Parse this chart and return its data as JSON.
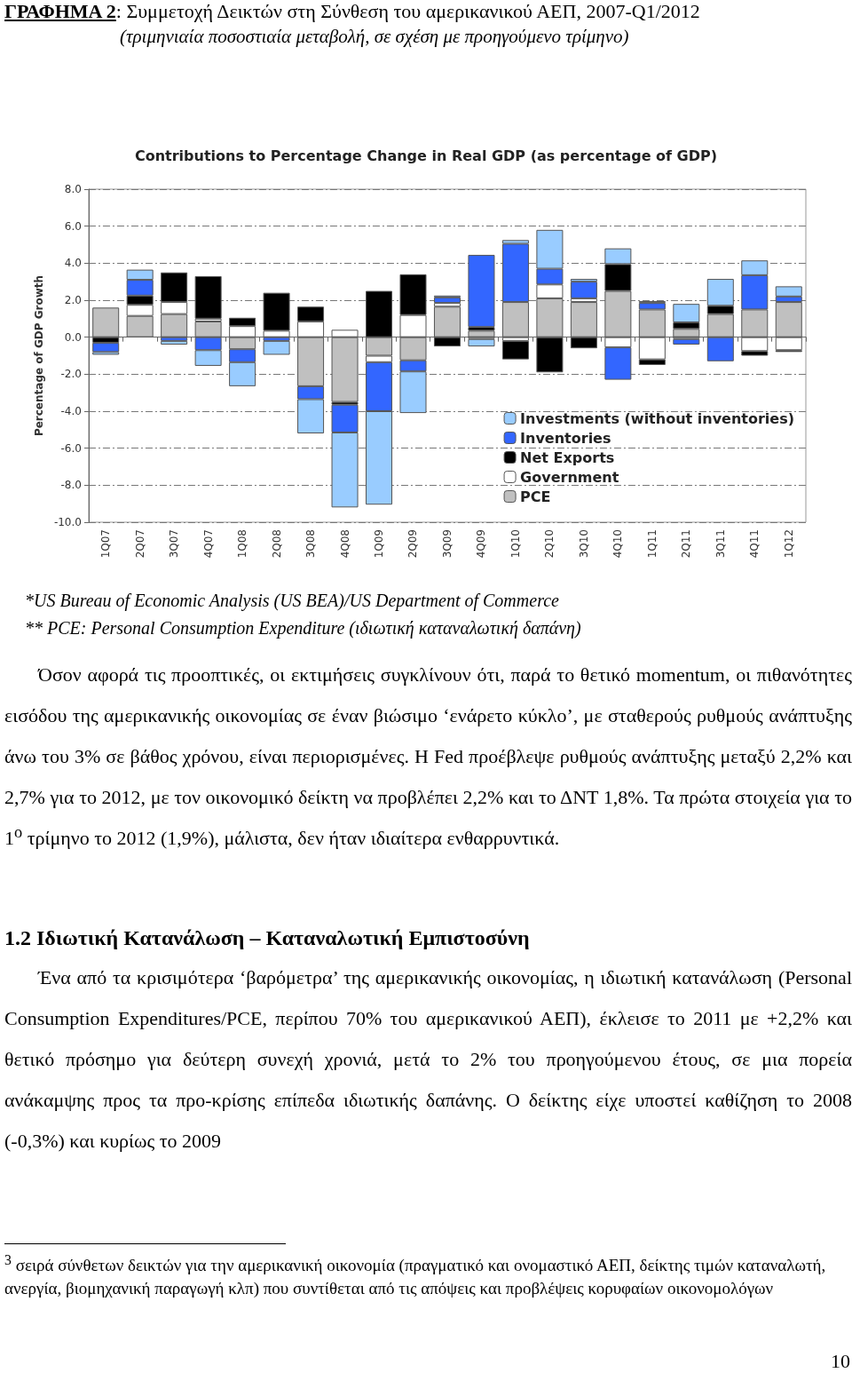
{
  "chart_data": {
    "type": "bar",
    "stacked": true,
    "title": "ΓΡΑΦΗΜΑ 2: Συμμετοχή Δεικτών στη Σύνθεση του αμερικανικού ΑΕΠ, 2007-Q1/2012",
    "subtitle": "(τριμηνιαία ποσοστιαία μεταβολή, σε σχέση με προηγούμενο τρίμηνο)",
    "ylabel": "Percentage of GDP Growth",
    "categories": [
      "1Q07",
      "2Q07",
      "3Q07",
      "4Q07",
      "1Q08",
      "2Q08",
      "3Q08",
      "4Q08",
      "1Q09",
      "2Q09",
      "3Q09",
      "4Q09",
      "1Q10",
      "2Q10",
      "3Q10",
      "4Q10",
      "1Q11",
      "2Q11",
      "3Q11",
      "4Q11",
      "1Q12"
    ],
    "series": [
      {
        "name": "PCE",
        "color": "#c0c0c0",
        "values": [
          1.6,
          1.15,
          1.25,
          0.85,
          -0.65,
          null,
          -2.65,
          -3.5,
          -1.0,
          -1.25,
          1.65,
          0.35,
          1.9,
          2.1,
          1.9,
          2.5,
          1.5,
          0.45,
          1.25,
          1.5,
          1.9
        ]
      },
      {
        "name": "Government",
        "color": "#ffffff",
        "values": [
          null,
          0.6,
          0.65,
          0.15,
          0.6,
          0.35,
          0.85,
          0.4,
          -0.35,
          1.2,
          0.2,
          -0.1,
          -0.2,
          0.75,
          0.2,
          -0.55,
          -1.2,
          -0.1,
          null,
          -0.75,
          -0.7
        ]
      },
      {
        "name": "Net Exports",
        "color": "#000000",
        "values": [
          -0.3,
          0.5,
          1.6,
          2.3,
          0.45,
          2.05,
          0.8,
          -0.15,
          2.5,
          2.2,
          -0.5,
          0.2,
          -1.0,
          -1.9,
          -0.6,
          1.45,
          -0.3,
          0.35,
          0.45,
          -0.25,
          -0.1
        ]
      },
      {
        "name": "Inventories",
        "color": "#3366ff",
        "values": [
          -0.5,
          0.85,
          -0.2,
          -0.7,
          -0.7,
          -0.2,
          -0.7,
          -1.5,
          -2.65,
          -0.6,
          0.3,
          3.9,
          3.15,
          0.85,
          0.9,
          -1.75,
          0.35,
          -0.3,
          -1.3,
          1.85,
          0.3
        ]
      },
      {
        "name": "Investments (without inventories)",
        "color": "#99ccff",
        "values": [
          -0.15,
          0.55,
          -0.2,
          -0.85,
          -1.3,
          -0.75,
          -1.85,
          -4.05,
          -5.05,
          -2.25,
          0.1,
          -0.4,
          0.2,
          2.1,
          0.15,
          0.85,
          0.1,
          1.0,
          1.45,
          0.8,
          0.55
        ]
      }
    ],
    "ylim": [
      -10,
      8
    ],
    "yticks": [
      {
        "value": -10,
        "label": "-10.0"
      },
      {
        "value": -8,
        "label": "-8.0"
      },
      {
        "value": -6,
        "label": "-6.0"
      },
      {
        "value": -4,
        "label": "-4.0"
      },
      {
        "value": -2,
        "label": "-2.0"
      },
      {
        "value": 0,
        "label": "0.0"
      },
      {
        "value": 2,
        "label": "2.0"
      },
      {
        "value": 4,
        "label": "4.0"
      },
      {
        "value": 6,
        "label": "6.0"
      },
      {
        "value": 8,
        "label": "8.0"
      }
    ],
    "grid": "y",
    "legend": "bottom right",
    "annotations": [
      "Contributions to Percentage Change in Real GDP (as percentage of GDP)",
      "*US Bureau of Economic Analysis (US BEA)/US Department of Commerce",
      "** PCE: Personal Consumption Expenditure (ιδιωτική καταναλωτική δαπάνη)",
      "Όσον αφορά τις προοπτικές, οι εκτιμήσεις συγκλίνουν ότι, παρά το θετικό momentum, οι πιθανότητες εισόδου της αμερικανικής οικονομίας σε έναν βιώσιμο ‘ενάρετο κύκλο’, με σταθερούς ρυθμούς ανάπτυξης άνω του 3% σε βάθος χρόνου, είναι περιορισμένες. Η Fed προέβλεψε ρυθμούς ανάπτυξης μεταξύ 2,2% και 2,7% για το 2012, με τον οικονομικό δείκτη να προβλέπει 2,2% και το ΔΝΤ 1,8%. Τα πρώτα στοιχεία για το 1$^{ο}$ τρίμηνο το 2012 (1,9%), μάλιστα, δεν ήταν ιδιαίτερα ενθαρρυντικά.",
      "1.2 Ιδιωτική Κατανάλωση – Καταναλωτική Εμπιστοσύνη",
      "Ένα από τα κρισιμότερα ‘βαρόμετρα’ της αμερικανικής οικονομίας, η ιδιωτική κατανάλωση (Personal Consumption Expenditures/PCE, περίπου 70% του αμερικανικού ΑΕΠ), έκλεισε το 2011 με +2,2% και θετικό πρόσημο για δεύτερη συνεχή χρονιά, μετά το 2% του προηγούμενου έτους, σε μια πορεία ανάκαμψης προς τα προ-κρίσης επίπεδα ιδιωτικής δαπάνης. Ο δείκτης είχε υποστεί καθίζηση το 2008 (-0,3%) και κυρίως το 2009",
      "$^{3}$ σειρά σύνθετων δεικτών για την αμερικανική οικονομία (πραγματικό και ονομαστικό ΑΕΠ, δείκτης τιμών καταναλωτή, ανεργία, βιομηχανική παραγωγή κλπ) που συντίθεται από τις απόψεις και προβλέψεις κορυφαίων οικονομολόγων",
      "10"
    ]
  }
}
